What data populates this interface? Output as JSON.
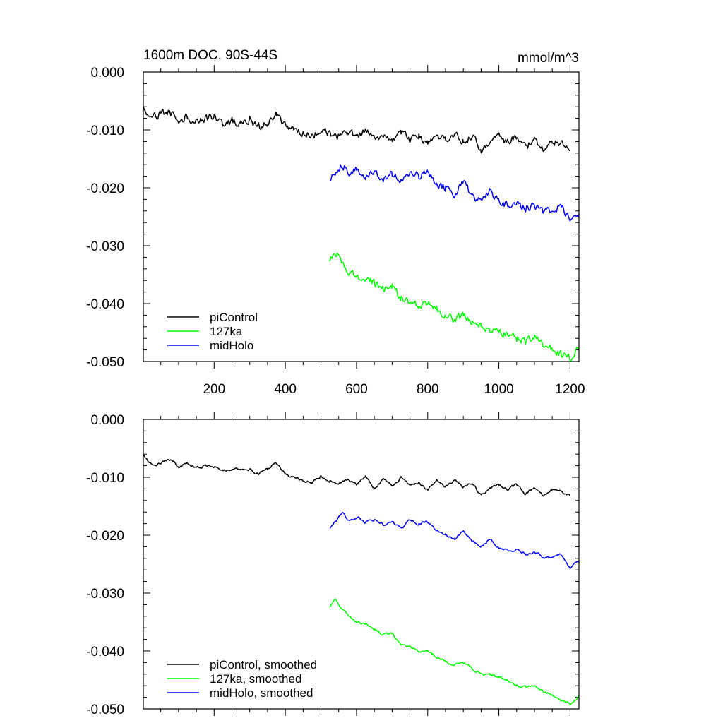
{
  "chart_data": [
    {
      "type": "line",
      "title": "1600m DOC, 90S-44S",
      "units_label": "mmol/m^3",
      "xlim": [
        1,
        1225
      ],
      "ylim": [
        -0.05,
        0.0
      ],
      "x_ticks": [
        200,
        400,
        600,
        800,
        1000,
        1200
      ],
      "x_tick_labels": [
        "200",
        "400",
        "600",
        "800",
        "1000",
        "1200"
      ],
      "y_ticks": [
        0.0,
        -0.01,
        -0.02,
        -0.03,
        -0.04,
        -0.05
      ],
      "y_tick_labels": [
        "0.000",
        "-0.010",
        "-0.020",
        "-0.030",
        "-0.040",
        "-0.050"
      ],
      "legend_position": "bottom-left",
      "series": [
        {
          "name": "piControl",
          "color": "#000000",
          "x": [
            1,
            10,
            30,
            50,
            75,
            100,
            125,
            150,
            175,
            200,
            225,
            250,
            275,
            300,
            325,
            350,
            375,
            400,
            425,
            450,
            475,
            500,
            525,
            550,
            575,
            600,
            625,
            650,
            675,
            700,
            725,
            750,
            775,
            800,
            825,
            850,
            875,
            900,
            925,
            950,
            975,
            1000,
            1025,
            1050,
            1075,
            1100,
            1125,
            1150,
            1175,
            1200
          ],
          "y": [
            -0.0055,
            -0.0075,
            -0.0078,
            -0.0072,
            -0.007,
            -0.0082,
            -0.0078,
            -0.0085,
            -0.008,
            -0.0076,
            -0.0092,
            -0.0085,
            -0.0089,
            -0.0082,
            -0.0095,
            -0.009,
            -0.0075,
            -0.0092,
            -0.0098,
            -0.0106,
            -0.0112,
            -0.0098,
            -0.0108,
            -0.0112,
            -0.0105,
            -0.011,
            -0.01,
            -0.0118,
            -0.0108,
            -0.0116,
            -0.0102,
            -0.0116,
            -0.011,
            -0.0125,
            -0.0108,
            -0.0118,
            -0.0106,
            -0.012,
            -0.011,
            -0.0135,
            -0.0118,
            -0.0112,
            -0.0122,
            -0.011,
            -0.013,
            -0.012,
            -0.0135,
            -0.0118,
            -0.0125,
            -0.0135
          ]
        },
        {
          "name": "127ka",
          "color": "#00ff00",
          "x": [
            525,
            540,
            560,
            580,
            600,
            625,
            650,
            675,
            700,
            725,
            750,
            775,
            800,
            825,
            850,
            875,
            900,
            925,
            950,
            975,
            1000,
            1025,
            1050,
            1075,
            1100,
            1125,
            1150,
            1175,
            1200,
            1225
          ],
          "y": [
            -0.0325,
            -0.031,
            -0.033,
            -0.0345,
            -0.0352,
            -0.0355,
            -0.0365,
            -0.0375,
            -0.037,
            -0.039,
            -0.0395,
            -0.0405,
            -0.04,
            -0.041,
            -0.042,
            -0.0428,
            -0.042,
            -0.0432,
            -0.044,
            -0.0445,
            -0.0448,
            -0.0455,
            -0.046,
            -0.0465,
            -0.046,
            -0.0472,
            -0.0478,
            -0.0488,
            -0.0495,
            -0.0478
          ]
        },
        {
          "name": "midHolo",
          "color": "#0000ff",
          "x": [
            525,
            540,
            560,
            580,
            600,
            625,
            650,
            675,
            700,
            725,
            750,
            775,
            800,
            825,
            850,
            875,
            900,
            925,
            950,
            975,
            1000,
            1025,
            1050,
            1075,
            1100,
            1125,
            1150,
            1175,
            1200,
            1225
          ],
          "y": [
            -0.0185,
            -0.0175,
            -0.016,
            -0.0175,
            -0.0165,
            -0.018,
            -0.017,
            -0.0185,
            -0.0175,
            -0.019,
            -0.0172,
            -0.018,
            -0.0175,
            -0.0195,
            -0.02,
            -0.021,
            -0.019,
            -0.0215,
            -0.0225,
            -0.0205,
            -0.0225,
            -0.023,
            -0.0225,
            -0.0235,
            -0.023,
            -0.024,
            -0.0238,
            -0.0232,
            -0.0258,
            -0.0245
          ]
        }
      ]
    },
    {
      "type": "line",
      "title": "",
      "xlim": [
        1,
        1225
      ],
      "ylim": [
        -0.05,
        0.0
      ],
      "x_ticks": [
        200,
        400,
        600,
        800,
        1000,
        1200
      ],
      "x_tick_labels": [],
      "y_ticks": [
        0.0,
        -0.01,
        -0.02,
        -0.03,
        -0.04,
        -0.05
      ],
      "y_tick_labels": [
        "0.000",
        "-0.010",
        "-0.020",
        "-0.030",
        "-0.040",
        "-0.050"
      ],
      "legend_position": "bottom-left",
      "series": [
        {
          "name": "piControl, smoothed",
          "color": "#000000",
          "x": [
            1,
            25,
            50,
            75,
            100,
            125,
            150,
            175,
            200,
            225,
            250,
            275,
            300,
            325,
            350,
            375,
            400,
            425,
            450,
            475,
            500,
            525,
            550,
            575,
            600,
            625,
            650,
            675,
            700,
            725,
            750,
            775,
            800,
            825,
            850,
            875,
            900,
            925,
            950,
            975,
            1000,
            1025,
            1050,
            1075,
            1100,
            1125,
            1150,
            1175,
            1200
          ],
          "y": [
            -0.0062,
            -0.008,
            -0.0075,
            -0.0068,
            -0.0082,
            -0.0076,
            -0.0084,
            -0.008,
            -0.0082,
            -0.0086,
            -0.0088,
            -0.0084,
            -0.0086,
            -0.0094,
            -0.0086,
            -0.0076,
            -0.0094,
            -0.01,
            -0.0104,
            -0.011,
            -0.0098,
            -0.0106,
            -0.011,
            -0.0104,
            -0.0112,
            -0.0098,
            -0.0118,
            -0.0104,
            -0.0114,
            -0.01,
            -0.0114,
            -0.0108,
            -0.0122,
            -0.0106,
            -0.0116,
            -0.0104,
            -0.0116,
            -0.011,
            -0.0132,
            -0.012,
            -0.0112,
            -0.0122,
            -0.0112,
            -0.0128,
            -0.0118,
            -0.0132,
            -0.012,
            -0.0124,
            -0.0132
          ]
        },
        {
          "name": "127ka, smoothed",
          "color": "#00ff00",
          "x": [
            525,
            540,
            560,
            580,
            600,
            625,
            650,
            675,
            700,
            725,
            750,
            775,
            800,
            825,
            850,
            875,
            900,
            925,
            950,
            975,
            1000,
            1025,
            1050,
            1075,
            1100,
            1125,
            1150,
            1175,
            1200,
            1225
          ],
          "y": [
            -0.0325,
            -0.0312,
            -0.033,
            -0.0342,
            -0.035,
            -0.0355,
            -0.0362,
            -0.0372,
            -0.037,
            -0.0388,
            -0.0393,
            -0.0402,
            -0.04,
            -0.041,
            -0.0418,
            -0.0425,
            -0.042,
            -0.043,
            -0.0438,
            -0.0442,
            -0.0446,
            -0.0452,
            -0.0458,
            -0.0462,
            -0.046,
            -0.047,
            -0.0476,
            -0.0486,
            -0.0492,
            -0.0478
          ]
        },
        {
          "name": "midHolo, smoothed",
          "color": "#0000ff",
          "x": [
            525,
            540,
            560,
            580,
            600,
            625,
            650,
            675,
            700,
            725,
            750,
            775,
            800,
            825,
            850,
            875,
            900,
            925,
            950,
            975,
            1000,
            1025,
            1050,
            1075,
            1100,
            1125,
            1150,
            1175,
            1200,
            1225
          ],
          "y": [
            -0.0188,
            -0.0178,
            -0.0162,
            -0.0175,
            -0.0168,
            -0.0178,
            -0.0172,
            -0.0182,
            -0.0178,
            -0.0188,
            -0.0174,
            -0.018,
            -0.0176,
            -0.0192,
            -0.0198,
            -0.0206,
            -0.0192,
            -0.0212,
            -0.022,
            -0.0206,
            -0.0222,
            -0.0228,
            -0.0224,
            -0.0232,
            -0.0228,
            -0.0238,
            -0.0236,
            -0.0232,
            -0.0255,
            -0.0245
          ]
        }
      ]
    }
  ]
}
